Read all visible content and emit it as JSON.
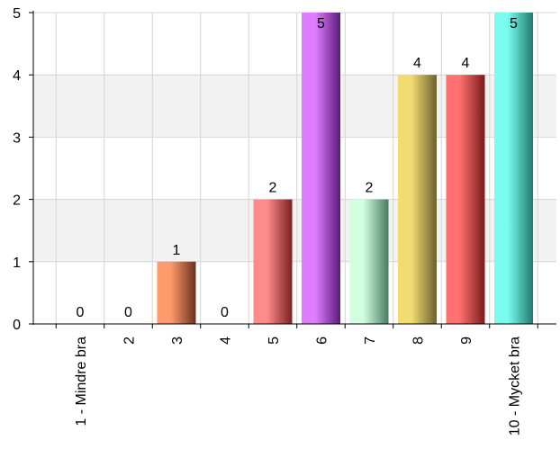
{
  "chart_data": {
    "type": "bar",
    "categories": [
      "1 - Mindre bra",
      "2",
      "3",
      "4",
      "5",
      "6",
      "7",
      "8",
      "9",
      "10 - Mycket bra"
    ],
    "values": [
      0,
      0,
      1,
      0,
      2,
      5,
      2,
      4,
      4,
      5
    ],
    "data_labels": [
      "0",
      "0",
      "1",
      "0",
      "2",
      "5",
      "2",
      "4",
      "4",
      "5"
    ],
    "y_ticks": [
      "0",
      "1",
      "2",
      "3",
      "4",
      "5"
    ],
    "ylim": [
      0,
      5
    ],
    "grid": true,
    "bar_colors": [
      [
        "#f07070",
        "#7a2020"
      ],
      [
        "#f07070",
        "#7a2020"
      ],
      [
        "#ff9a6a",
        "#6b3020"
      ],
      [
        "#f07070",
        "#7a2020"
      ],
      [
        "#ff8a8a",
        "#7a2020"
      ],
      [
        "#e07cff",
        "#5a1a7a"
      ],
      [
        "#d2ffe0",
        "#4a7a60"
      ],
      [
        "#f0dc70",
        "#6b6030"
      ],
      [
        "#ff7070",
        "#7a1a1a"
      ],
      [
        "#7afcf0",
        "#207a70"
      ]
    ]
  }
}
